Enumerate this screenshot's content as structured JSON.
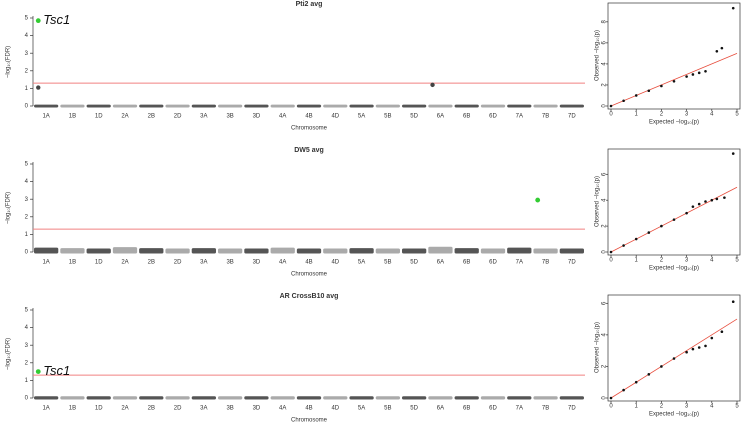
{
  "chart_data": [
    {
      "type": "manhattan",
      "title": "Pti2 avg",
      "xlabel": "Chromosome",
      "ylabel": "−log₁₀(FDR)",
      "categories": [
        "1A",
        "1B",
        "1D",
        "2A",
        "2B",
        "2D",
        "3A",
        "3B",
        "3D",
        "4A",
        "4B",
        "4D",
        "5A",
        "5B",
        "5D",
        "6A",
        "6B",
        "6D",
        "7A",
        "7B",
        "7D"
      ],
      "baseline": [
        0.08,
        0.08,
        0.08,
        0.08,
        0.08,
        0.08,
        0.08,
        0.08,
        0.08,
        0.08,
        0.08,
        0.08,
        0.08,
        0.08,
        0.08,
        0.08,
        0.08,
        0.08,
        0.08,
        0.08,
        0.08
      ],
      "colors": [
        "#555555",
        "#aaaaaa"
      ],
      "peaks": [
        1.05,
        null,
        null,
        null,
        null,
        null,
        null,
        null,
        null,
        null,
        null,
        null,
        null,
        null,
        null,
        1.2,
        null,
        null,
        null,
        null,
        null
      ],
      "peak_color": "#444444",
      "significant": [
        4.85,
        null,
        null,
        null,
        null,
        null,
        null,
        null,
        null,
        null,
        null,
        null,
        null,
        null,
        null,
        null,
        null,
        null,
        null,
        null,
        null
      ],
      "significant_color": "#33cc33",
      "annotation": "Tsc1",
      "threshold": 1.3,
      "threshold_color": "#f08080",
      "ylim": [
        0,
        5
      ],
      "yticks": [
        0,
        1,
        2,
        3,
        4,
        5
      ]
    },
    {
      "type": "qq",
      "xlabel": "Expected −log₁₀(p)",
      "ylabel": "Observed −log₁₀(p)",
      "x": [
        0,
        0.5,
        1,
        1.5,
        2,
        2.5,
        3,
        3.25,
        3.5,
        3.75,
        4.2,
        4.4,
        4.85
      ],
      "y": [
        0,
        0.5,
        1,
        1.45,
        1.9,
        2.35,
        2.8,
        3.0,
        3.15,
        3.3,
        5.2,
        5.5,
        9.3
      ],
      "color": "#111111",
      "reference_color": "#e74c3c",
      "xlim": [
        0,
        5
      ],
      "xticks": [
        0,
        1,
        2,
        3,
        4,
        5
      ],
      "ylim": [
        0,
        9.6
      ],
      "yticks": [
        0,
        2,
        4,
        6,
        8
      ]
    },
    {
      "type": "manhattan",
      "title": "DW5 avg",
      "xlabel": "Chromosome",
      "ylabel": "−log₁₀(FDR)",
      "categories": [
        "1A",
        "1B",
        "1D",
        "2A",
        "2B",
        "2D",
        "3A",
        "3B",
        "3D",
        "4A",
        "4B",
        "4D",
        "5A",
        "5B",
        "5D",
        "6A",
        "6B",
        "6D",
        "7A",
        "7B",
        "7D"
      ],
      "baseline": [
        0.25,
        0.22,
        0.2,
        0.28,
        0.22,
        0.2,
        0.22,
        0.2,
        0.2,
        0.25,
        0.2,
        0.2,
        0.22,
        0.2,
        0.2,
        0.3,
        0.22,
        0.2,
        0.25,
        0.2,
        0.2
      ],
      "colors": [
        "#555555",
        "#aaaaaa"
      ],
      "significant": [
        null,
        null,
        null,
        null,
        null,
        null,
        null,
        null,
        null,
        null,
        null,
        null,
        null,
        null,
        null,
        null,
        null,
        null,
        null,
        2.95,
        null
      ],
      "significant_color": "#33cc33",
      "threshold": 1.3,
      "threshold_color": "#f08080",
      "ylim": [
        0,
        5
      ],
      "yticks": [
        0,
        1,
        2,
        3,
        4,
        5
      ]
    },
    {
      "type": "qq",
      "xlabel": "Expected −log₁₀(p)",
      "ylabel": "Observed −log₁₀(p)",
      "x": [
        0,
        0.5,
        1,
        1.5,
        2,
        2.5,
        3,
        3.25,
        3.5,
        3.75,
        4,
        4.2,
        4.5,
        4.85
      ],
      "y": [
        0,
        0.5,
        1,
        1.5,
        2.0,
        2.5,
        3.0,
        3.5,
        3.7,
        3.9,
        4.0,
        4.1,
        4.2,
        7.6
      ],
      "color": "#111111",
      "reference_color": "#e74c3c",
      "xlim": [
        0,
        5
      ],
      "xticks": [
        0,
        1,
        2,
        3,
        4,
        5
      ],
      "ylim": [
        0,
        7.8
      ],
      "yticks": [
        0,
        2,
        4,
        6
      ]
    },
    {
      "type": "manhattan",
      "title": "AR CrossB10 avg",
      "xlabel": "Chromosome",
      "ylabel": "−log₁₀(FDR)",
      "categories": [
        "1A",
        "1B",
        "1D",
        "2A",
        "2B",
        "2D",
        "3A",
        "3B",
        "3D",
        "4A",
        "4B",
        "4D",
        "5A",
        "5B",
        "5D",
        "6A",
        "6B",
        "6D",
        "7A",
        "7B",
        "7D"
      ],
      "baseline": [
        0.1,
        0.1,
        0.1,
        0.1,
        0.1,
        0.1,
        0.1,
        0.1,
        0.1,
        0.1,
        0.1,
        0.1,
        0.1,
        0.1,
        0.1,
        0.1,
        0.1,
        0.1,
        0.1,
        0.1,
        0.1
      ],
      "colors": [
        "#555555",
        "#aaaaaa"
      ],
      "significant": [
        1.5,
        null,
        null,
        null,
        null,
        null,
        null,
        null,
        null,
        null,
        null,
        null,
        null,
        null,
        null,
        null,
        null,
        null,
        null,
        null,
        null
      ],
      "significant_color": "#33cc33",
      "annotation": "Tsc1",
      "threshold": 1.3,
      "threshold_color": "#f08080",
      "ylim": [
        0,
        5
      ],
      "yticks": [
        0,
        1,
        2,
        3,
        4,
        5
      ]
    },
    {
      "type": "qq",
      "xlabel": "Expected −log₁₀(p)",
      "ylabel": "Observed −log₁₀(p)",
      "x": [
        0,
        0.5,
        1,
        1.5,
        2,
        2.5,
        3,
        3.25,
        3.5,
        3.75,
        4,
        4.4,
        4.85
      ],
      "y": [
        0,
        0.5,
        1,
        1.5,
        2.0,
        2.5,
        2.9,
        3.1,
        3.2,
        3.3,
        3.8,
        4.2,
        6.1
      ],
      "color": "#111111",
      "reference_color": "#e74c3c",
      "xlim": [
        0,
        5
      ],
      "xticks": [
        0,
        1,
        2,
        3,
        4,
        5
      ],
      "ylim": [
        0,
        6.4
      ],
      "yticks": [
        0,
        2,
        4,
        6
      ]
    }
  ]
}
